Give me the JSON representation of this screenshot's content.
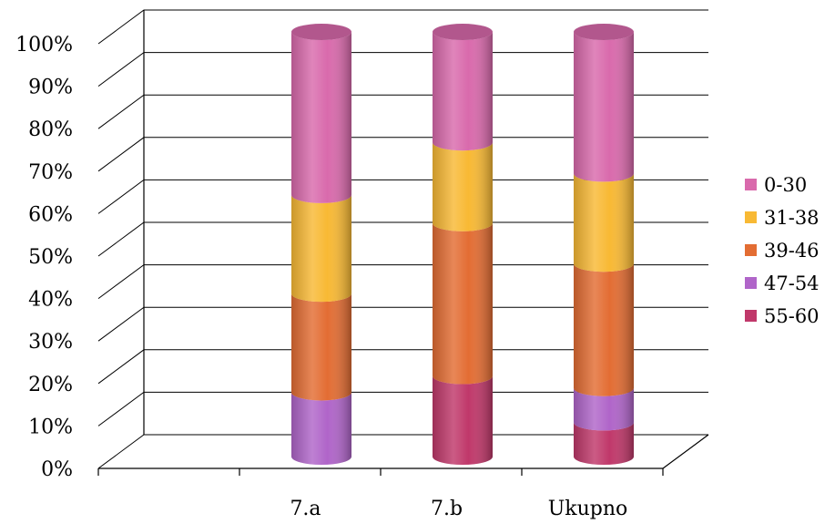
{
  "chart_data": {
    "type": "bar",
    "stacked": true,
    "percent": true,
    "three_d": true,
    "bar_shape": "cylinder",
    "categories": [
      "7.a",
      "7.b",
      "Ukupno"
    ],
    "series": [
      {
        "name": "55-60",
        "color": "#c0386a",
        "values": [
          0,
          19,
          8
        ]
      },
      {
        "name": "47-54",
        "color": "#b065c9",
        "values": [
          15,
          0,
          8
        ]
      },
      {
        "name": "39-46",
        "color": "#e36d33",
        "values": [
          23,
          36,
          29
        ]
      },
      {
        "name": "31-38",
        "color": "#f8b934",
        "values": [
          23,
          19,
          21
        ]
      },
      {
        "name": "0-30",
        "color": "#d96aac",
        "values": [
          38,
          26,
          33
        ]
      }
    ],
    "y_ticks": [
      "0%",
      "10%",
      "20%",
      "30%",
      "40%",
      "50%",
      "60%",
      "70%",
      "80%",
      "90%",
      "100%"
    ],
    "ylim": [
      0,
      100
    ],
    "grid": true,
    "legend_position": "right",
    "legend_order": [
      "0-30",
      "31-38",
      "39-46",
      "47-54",
      "55-60"
    ]
  }
}
